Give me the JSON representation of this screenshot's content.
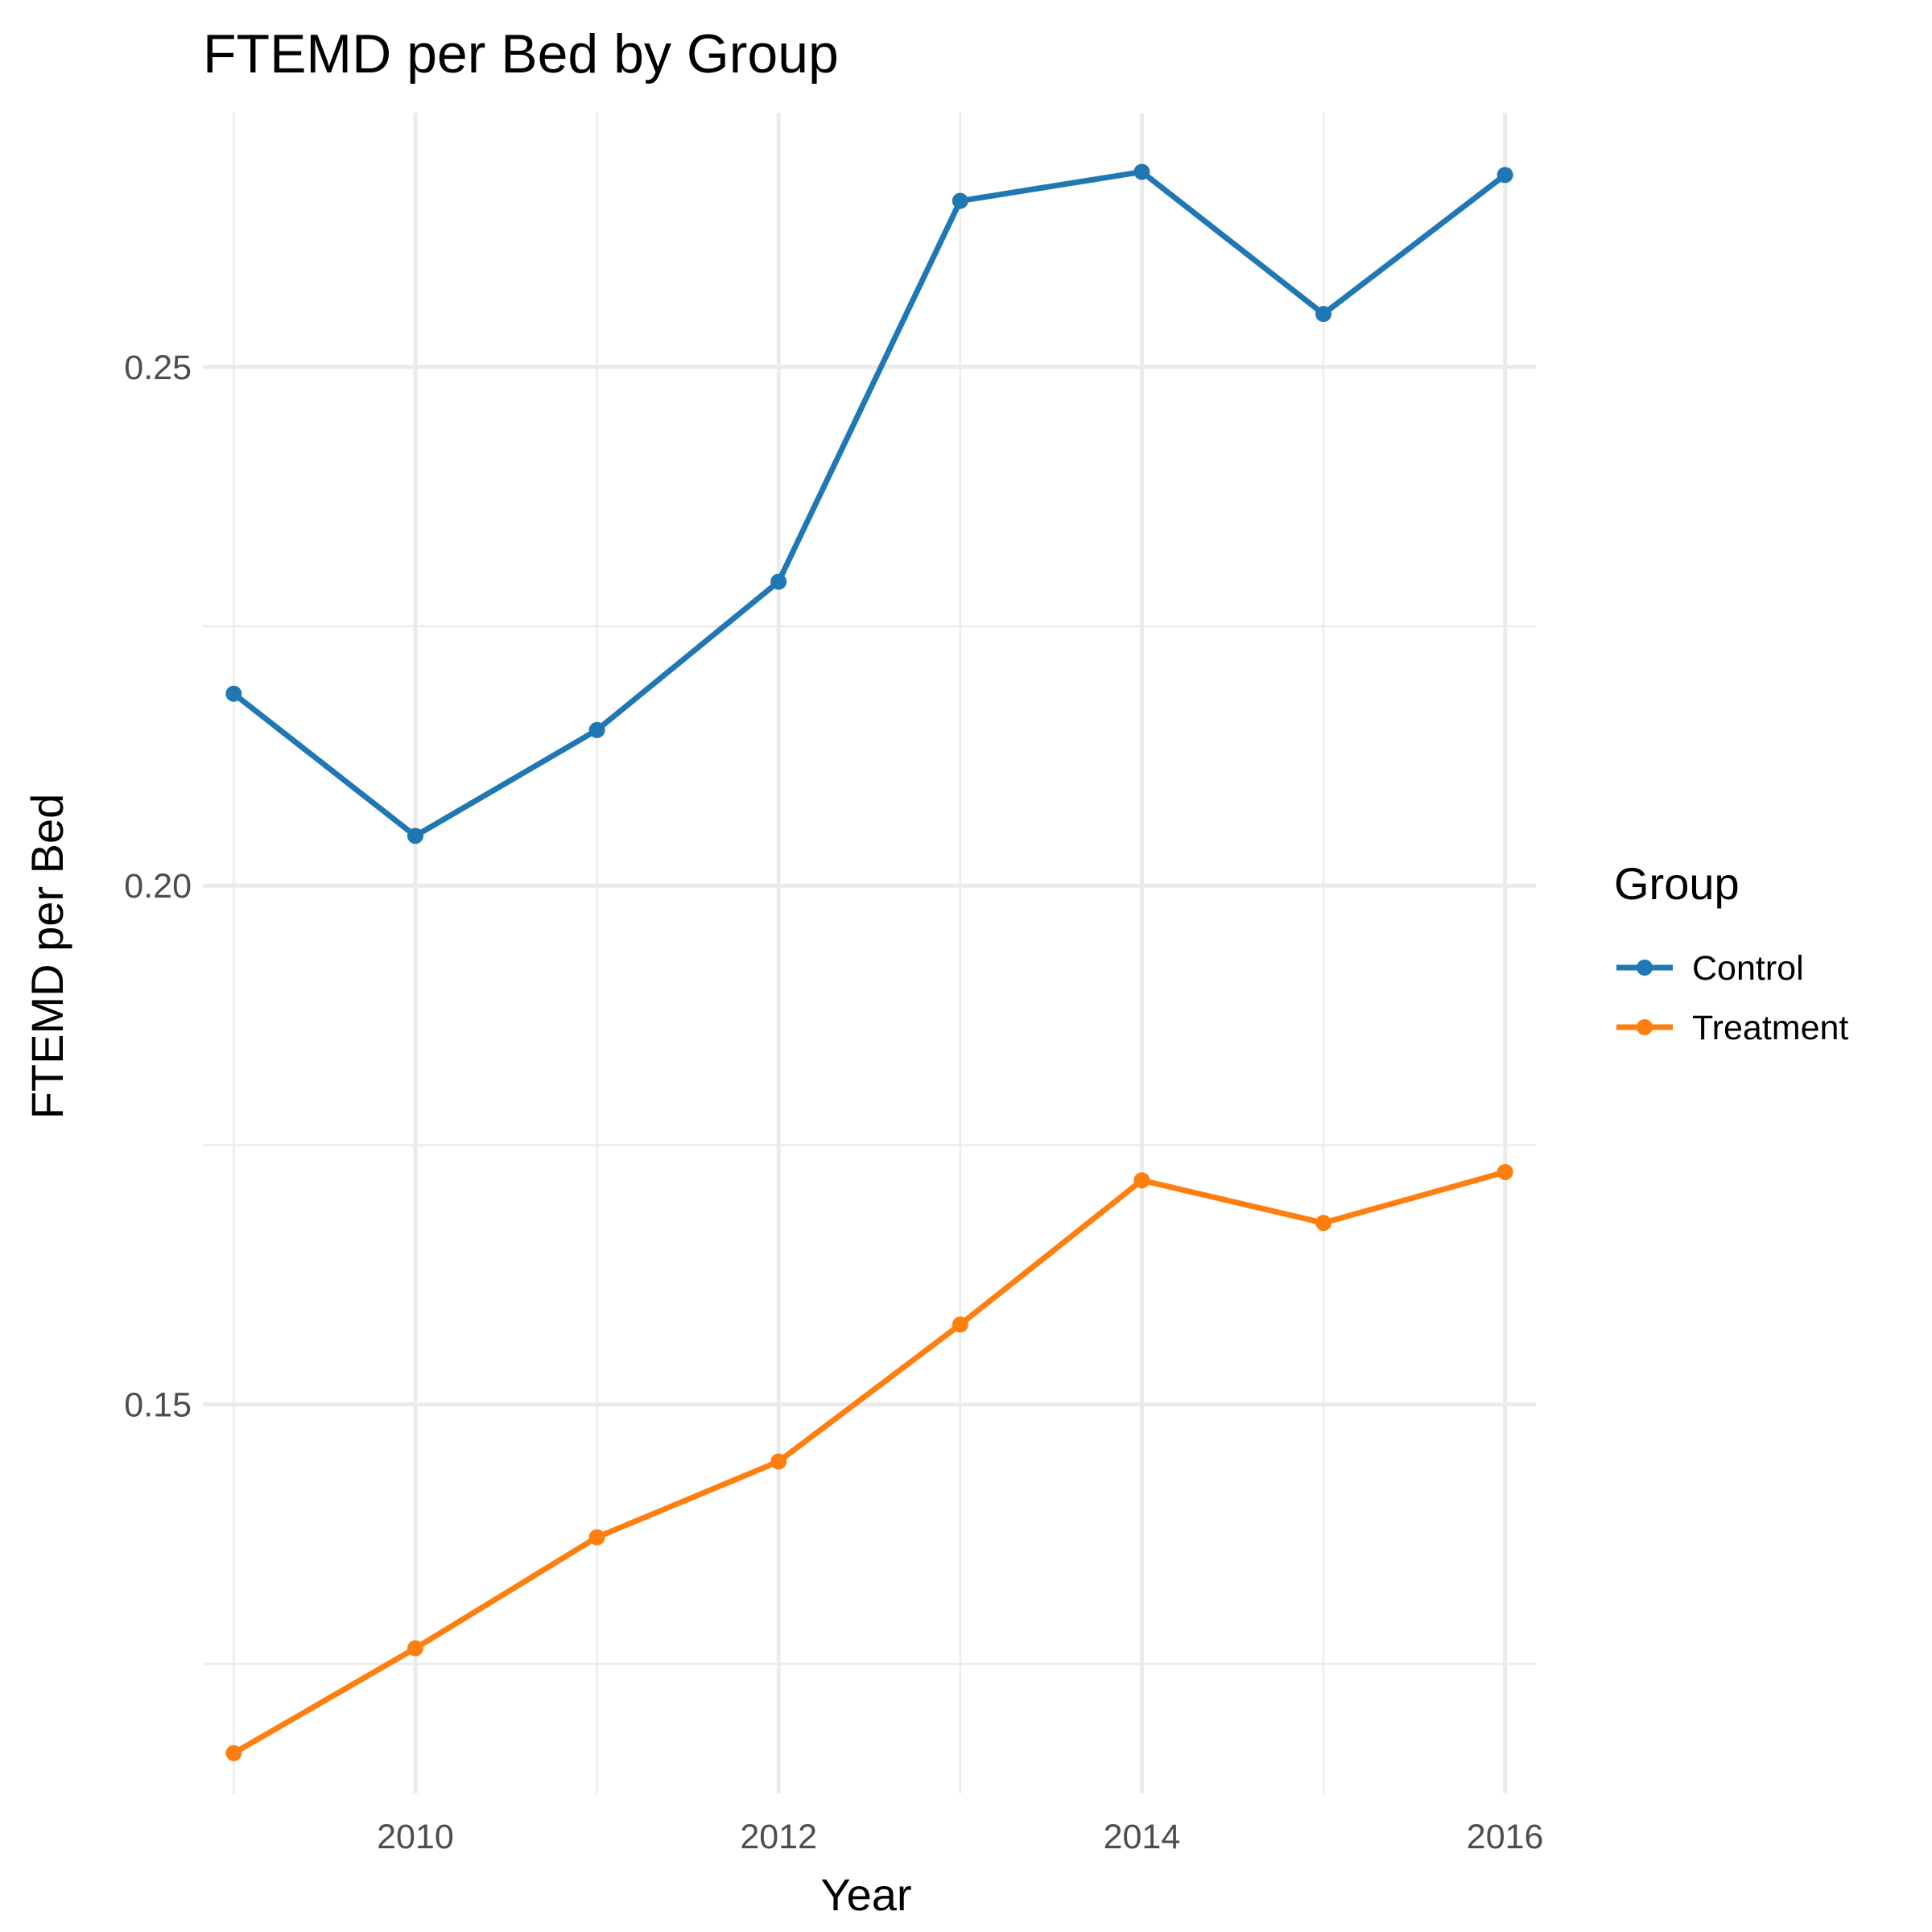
{
  "chart_data": {
    "type": "line",
    "title": "FTEMD per Bed by Group",
    "xlabel": "Year",
    "ylabel": "FTEMD per Bed",
    "x": [
      2009,
      2010,
      2011,
      2012,
      2013,
      2014,
      2015,
      2016
    ],
    "xlim": [
      2008.83,
      2016.17
    ],
    "ylim": [
      0.1125,
      0.2745
    ],
    "x_ticks": [
      "2010",
      "2012",
      "2014",
      "2016"
    ],
    "y_ticks": [
      "0.15",
      "0.20",
      "0.25"
    ],
    "grid": true,
    "legend": {
      "title": "Group",
      "position": "right"
    },
    "series": [
      {
        "name": "Control",
        "color": "#1f77b4",
        "values": [
          0.2185,
          0.2048,
          0.215,
          0.2293,
          0.266,
          0.2688,
          0.2551,
          0.2685
        ]
      },
      {
        "name": "Treatment",
        "color": "#ff7f0e",
        "values": [
          0.1164,
          0.1265,
          0.1372,
          0.1445,
          0.1577,
          0.1716,
          0.1675,
          0.1724
        ]
      }
    ]
  }
}
